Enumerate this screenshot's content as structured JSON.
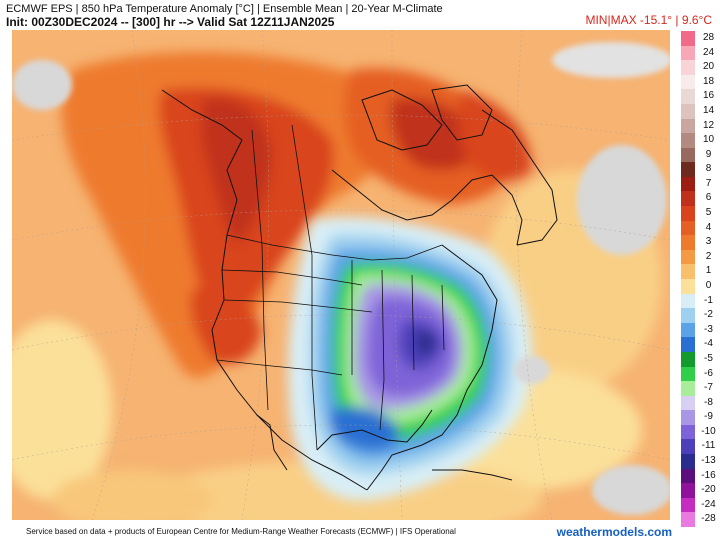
{
  "header": {
    "title": "ECMWF EPS | 850 hPa Temperature Anomaly [°C] | Ensemble Mean | 20-Year M-Climate",
    "subtitle": "Init: 00Z30DEC2024 -- [300] hr --> Valid Sat 12Z11JAN2025",
    "minmax": "MIN|MAX -15.1° | 9.6°C"
  },
  "legend": [
    {
      "label": "28",
      "color": "#f26a8a"
    },
    {
      "label": "24",
      "color": "#f7a7b6"
    },
    {
      "label": "20",
      "color": "#f8d3d8"
    },
    {
      "label": "18",
      "color": "#f7eceb"
    },
    {
      "label": "16",
      "color": "#e9d9d6"
    },
    {
      "label": "14",
      "color": "#dcc3be"
    },
    {
      "label": "12",
      "color": "#c9a7a0"
    },
    {
      "label": "10",
      "color": "#b38a80"
    },
    {
      "label": "9",
      "color": "#98695e"
    },
    {
      "label": "8",
      "color": "#6e2a1f"
    },
    {
      "label": "7",
      "color": "#9c1e12"
    },
    {
      "label": "6",
      "color": "#c0311c"
    },
    {
      "label": "5",
      "color": "#d9441f"
    },
    {
      "label": "4",
      "color": "#e55e24"
    },
    {
      "label": "3",
      "color": "#ee7a2e"
    },
    {
      "label": "2",
      "color": "#f49a45"
    },
    {
      "label": "1",
      "color": "#f8bf6d"
    },
    {
      "label": "0",
      "color": "#fbe09a"
    },
    {
      "label": "-1",
      "color": "#d8eef6"
    },
    {
      "label": "-2",
      "color": "#9fd0ef"
    },
    {
      "label": "-3",
      "color": "#5aa3e6"
    },
    {
      "label": "-4",
      "color": "#2a6fd2"
    },
    {
      "label": "-5",
      "color": "#139b2e"
    },
    {
      "label": "-6",
      "color": "#2fcf4a"
    },
    {
      "label": "-7",
      "color": "#a8ee9a"
    },
    {
      "label": "-8",
      "color": "#d7d0f2"
    },
    {
      "label": "-9",
      "color": "#a997e6"
    },
    {
      "label": "-10",
      "color": "#7e63d8"
    },
    {
      "label": "-11",
      "color": "#4d3fb9"
    },
    {
      "label": "-13",
      "color": "#2a2d8e"
    },
    {
      "label": "-16",
      "color": "#5a0f7d"
    },
    {
      "label": "-20",
      "color": "#8e139a"
    },
    {
      "label": "-24",
      "color": "#c52cc0"
    },
    {
      "label": "-28",
      "color": "#e87ae0"
    }
  ],
  "map": {
    "ocean_color": "#f6b372",
    "land_mask_color": "#d8d8d8",
    "border_color": "#111111"
  },
  "footer": {
    "attribution": "Service based on data + products of European Centre for Medium-Range Weather Forecasts (ECMWF) | IFS Operational",
    "brand": "weathermodels.com"
  }
}
